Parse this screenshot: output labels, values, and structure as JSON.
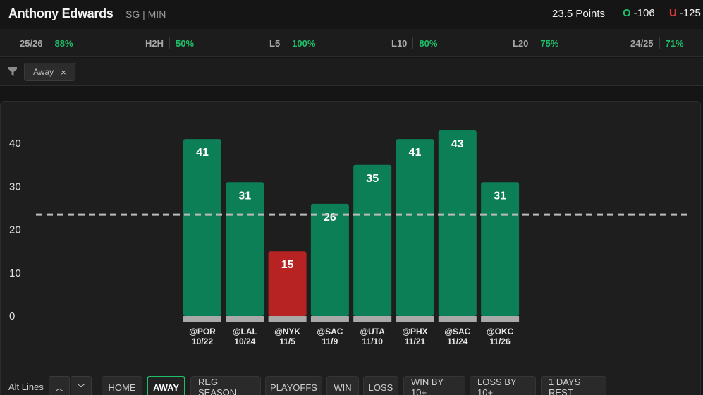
{
  "header": {
    "player_name": "Anthony Edwards",
    "player_meta": "SG | MIN",
    "prop_line": "23.5 Points",
    "over_letter": "O",
    "over_odds": "-106",
    "under_letter": "U",
    "under_odds": "-125"
  },
  "stats": [
    {
      "label": "25/26",
      "pct": "88%"
    },
    {
      "label": "H2H",
      "pct": "50%"
    },
    {
      "label": "L5",
      "pct": "100%"
    },
    {
      "label": "L10",
      "pct": "80%"
    },
    {
      "label": "L20",
      "pct": "75%"
    },
    {
      "label": "24/25",
      "pct": "71%"
    }
  ],
  "filter": {
    "chip_label": "Away",
    "chip_close": "×"
  },
  "chart_data": {
    "type": "bar",
    "categories": [
      "@POR 10/22",
      "@LAL 10/24",
      "@NYK 11/5",
      "@SAC 11/9",
      "@UTA 11/10",
      "@PHX 11/21",
      "@SAC 11/24",
      "@OKC 11/26"
    ],
    "opponents": [
      "@POR",
      "@LAL",
      "@NYK",
      "@SAC",
      "@UTA",
      "@PHX",
      "@SAC",
      "@OKC"
    ],
    "dates": [
      "10/22",
      "10/24",
      "11/5",
      "11/9",
      "11/10",
      "11/21",
      "11/24",
      "11/26"
    ],
    "values": [
      41,
      31,
      15,
      26,
      35,
      41,
      43,
      31
    ],
    "line": 23.5,
    "yticks": [
      0,
      10,
      20,
      30,
      40
    ],
    "ylim": [
      0,
      45
    ],
    "over_color": "#0d7f57",
    "under_color": "#b72222",
    "grid": false
  },
  "bottom": {
    "alt_lines_label": "Alt Lines",
    "up_arrow": "︿",
    "down_arrow": "﹀",
    "filters": [
      "HOME",
      "AWAY",
      "REG SEASON",
      "PLAYOFFS",
      "WIN",
      "LOSS",
      "WIN BY 10+",
      "LOSS BY 10+",
      "1 DAYS REST"
    ],
    "active_filter": "AWAY"
  },
  "colors": {
    "accent_green": "#1fbf6a",
    "accent_red": "#e33b3b"
  }
}
